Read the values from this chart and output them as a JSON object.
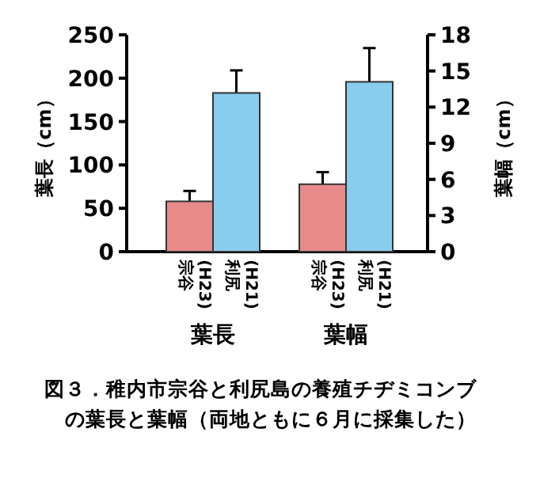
{
  "chart_data": {
    "type": "bar",
    "title": "図３．稚内市宗谷と利尻島の養殖チヂミコンブの葉長と葉幅（両地ともに６月に採集した）",
    "categories": [
      "宗谷\n(H23)",
      "利尻\n(H21)",
      "宗谷\n(H23)",
      "利尻\n(H21)"
    ],
    "series": [
      {
        "axis": "y",
        "colors": [
          "#e88a8a",
          "#88ccee",
          null,
          null
        ],
        "values": [
          58,
          183,
          null,
          null
        ],
        "errors": [
          [
            58,
            70
          ],
          [
            183,
            209
          ],
          null,
          null
        ]
      },
      {
        "axis": "y2",
        "colors": [
          null,
          null,
          "#e88a8a",
          "#88ccee"
        ],
        "values": [
          null,
          null,
          5.6,
          14.1
        ],
        "errors": [
          null,
          null,
          [
            5.6,
            6.6
          ],
          [
            14.1,
            16.9
          ]
        ]
      }
    ],
    "ylabel": "葉長（cm）",
    "y2label": "葉幅（cm）",
    "ylim": [
      0,
      250
    ],
    "yticks": [
      0,
      50,
      100,
      150,
      200,
      250
    ],
    "y2lim": [
      0,
      18
    ],
    "y2ticks": [
      0,
      3,
      6,
      9,
      12,
      15,
      18
    ],
    "annotations": [
      "葉長",
      "葉幅"
    ]
  }
}
